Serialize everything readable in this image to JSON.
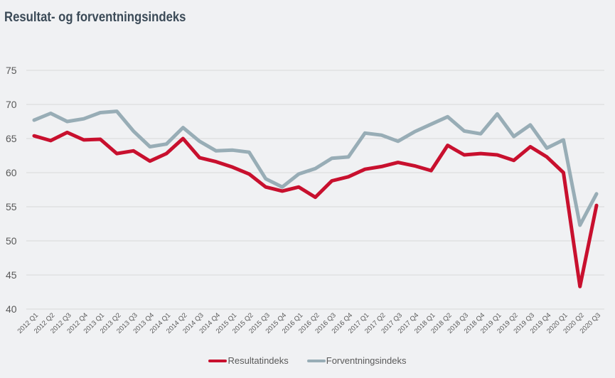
{
  "chart_data": {
    "type": "line",
    "title": "Resultat- og forventningsindeks",
    "xlabel": "",
    "ylabel": "",
    "ylim": [
      40,
      75
    ],
    "yticks": [
      "75",
      "70",
      "65",
      "60",
      "55",
      "50",
      "45",
      "40"
    ],
    "grid": true,
    "legend_position": "bottom",
    "categories": [
      "2012 Q1",
      "2012 Q2",
      "2012 Q3",
      "2012 Q4",
      "2013 Q1",
      "2013 Q2",
      "2013 Q3",
      "2013 Q4",
      "2014 Q1",
      "2014 Q2",
      "2014 Q3",
      "2014 Q4",
      "2015 Q1",
      "2015 Q2",
      "2015 Q3",
      "2015 Q4",
      "2016 Q1",
      "2016 Q2",
      "2016 Q3",
      "2016 Q4",
      "2017 Q1",
      "2017 Q2",
      "2017 Q3",
      "2017 Q4",
      "2018 Q1",
      "2018 Q2",
      "2018 Q3",
      "2018 Q4",
      "2019 Q1",
      "2019 Q2",
      "2019 Q3",
      "2019 Q4",
      "2020 Q1",
      "2020 Q2",
      "2020 Q3"
    ],
    "series": [
      {
        "name": "Resultatindeks",
        "color": "#c8102e",
        "values": [
          65.4,
          64.7,
          65.9,
          64.8,
          64.9,
          62.8,
          63.2,
          61.7,
          62.8,
          65.0,
          62.2,
          61.6,
          60.8,
          59.8,
          57.9,
          57.3,
          57.9,
          56.4,
          58.8,
          59.4,
          60.5,
          60.9,
          61.5,
          61.0,
          60.3,
          64.0,
          62.6,
          62.8,
          62.6,
          61.8,
          63.8,
          62.3,
          60.0,
          43.3,
          55.2
        ]
      },
      {
        "name": "Forventningsindeks",
        "color": "#98adb6",
        "values": [
          67.7,
          68.7,
          67.5,
          67.9,
          68.8,
          69.0,
          66.1,
          63.8,
          64.2,
          66.6,
          64.6,
          63.2,
          63.3,
          63.0,
          59.1,
          57.9,
          59.8,
          60.6,
          62.1,
          62.3,
          65.8,
          65.5,
          64.6,
          66.0,
          67.1,
          68.2,
          66.1,
          65.7,
          68.6,
          65.3,
          67.0,
          63.6,
          64.8,
          52.3,
          56.9
        ]
      }
    ]
  }
}
